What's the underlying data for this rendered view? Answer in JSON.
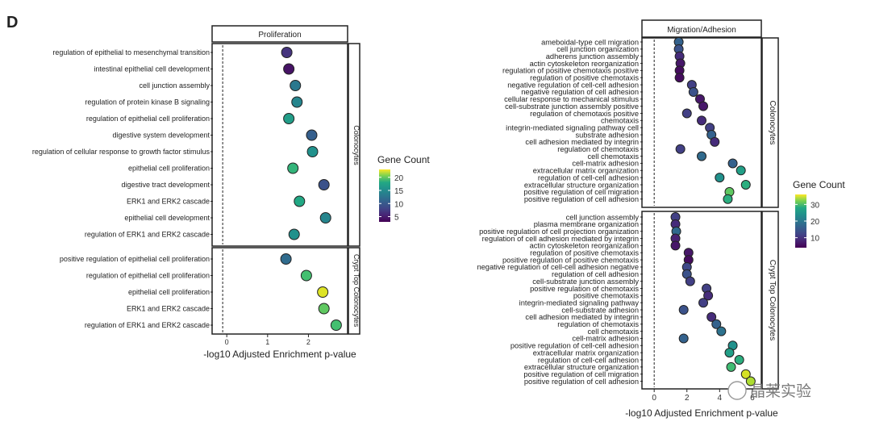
{
  "panel_letter": "D",
  "watermark": "晶莱实验",
  "chart_data": [
    {
      "type": "scatter",
      "subtype": "dotplot",
      "facet_title": "Proliferation",
      "xlabel": "-log10 Adjusted Enrichment p-value",
      "xlim": [
        -0.3,
        2.9
      ],
      "xticks": [
        0,
        1,
        2
      ],
      "reference_line_x": -0.1,
      "color_legend": {
        "title": "Gene Count",
        "min": 3,
        "max": 23,
        "ticks": [
          5,
          10,
          15,
          20
        ],
        "position": "right"
      },
      "groups": [
        {
          "name": "Colonocytes",
          "terms": [
            {
              "term": "regulation of epithelial to mesenchymal transition",
              "x": 1.47,
              "count": 6
            },
            {
              "term": "intestinal epithelial cell development",
              "x": 1.52,
              "count": 4
            },
            {
              "term": "cell junction assembly",
              "x": 1.68,
              "count": 11
            },
            {
              "term": "regulation of protein kinase B signaling",
              "x": 1.72,
              "count": 12
            },
            {
              "term": "regulation of epithelial cell proliferation",
              "x": 1.52,
              "count": 14
            },
            {
              "term": "digestive system development",
              "x": 2.08,
              "count": 9
            },
            {
              "term": "regulation of cellular response to growth factor stimulus",
              "x": 2.1,
              "count": 13
            },
            {
              "term": "epithelial cell proliferation",
              "x": 1.62,
              "count": 16
            },
            {
              "term": "digestive tract development",
              "x": 2.38,
              "count": 8
            },
            {
              "term": "ERK1 and ERK2 cascade",
              "x": 1.78,
              "count": 15
            },
            {
              "term": "epithelial cell development",
              "x": 2.42,
              "count": 12
            },
            {
              "term": "regulation of ERK1 and ERK2 cascade",
              "x": 1.65,
              "count": 13
            }
          ]
        },
        {
          "name": "Crypt Top Colonocytes",
          "terms": [
            {
              "term": "positive regulation of epithelial cell proliferation",
              "x": 1.45,
              "count": 10
            },
            {
              "term": "regulation of epithelial cell proliferation",
              "x": 1.95,
              "count": 17
            },
            {
              "term": "epithelial cell proliferation",
              "x": 2.35,
              "count": 22
            },
            {
              "term": "ERK1 and ERK2 cascade",
              "x": 2.38,
              "count": 18
            },
            {
              "term": "regulation of ERK1 and ERK2 cascade",
              "x": 2.68,
              "count": 17
            }
          ]
        }
      ]
    },
    {
      "type": "scatter",
      "subtype": "dotplot",
      "facet_title": "Migration/Adhesion",
      "xlabel": "-log10 Adjusted Enrichment p-value",
      "xlim": [
        -0.6,
        6.4
      ],
      "xticks": [
        0,
        2,
        4,
        6
      ],
      "reference_line_x": 0,
      "color_legend": {
        "title": "Gene Count",
        "min": 4,
        "max": 36,
        "ticks": [
          10,
          20,
          30
        ],
        "position": "right"
      },
      "groups": [
        {
          "name": "Colonocytes",
          "terms": [
            {
              "term": "ameboidal-type cell migration",
              "x": 1.5,
              "count": 14
            },
            {
              "term": "cell junction organization",
              "x": 1.5,
              "count": 12
            },
            {
              "term": "adherens junction assembly",
              "x": 1.55,
              "count": 8
            },
            {
              "term": "actin cytoskeleton reorganization",
              "x": 1.6,
              "count": 6
            },
            {
              "term": "regulation of positive chemotaxis positive",
              "x": 1.55,
              "count": 5
            },
            {
              "term": "regulation of positive chemotaxis",
              "x": 1.55,
              "count": 5
            },
            {
              "term": "negative regulation of cell-cell adhesion",
              "x": 2.3,
              "count": 10
            },
            {
              "term": "negative regulation of cell adhesion",
              "x": 2.4,
              "count": 12
            },
            {
              "term": "cellular response to mechanical stimulus",
              "x": 2.8,
              "count": 6
            },
            {
              "term": "cell-substrate junction assembly positive",
              "x": 3.0,
              "count": 6
            },
            {
              "term": "regulation of chemotaxis positive",
              "x": 2.0,
              "count": 10
            },
            {
              "term": "chemotaxis",
              "x": 2.9,
              "count": 8
            },
            {
              "term": "integrin-mediated signaling pathway cell",
              "x": 3.4,
              "count": 10
            },
            {
              "term": "substrate adhesion",
              "x": 3.5,
              "count": 14
            },
            {
              "term": "cell adhesion mediated by integrin",
              "x": 3.7,
              "count": 8
            },
            {
              "term": "regulation of chemotaxis",
              "x": 1.6,
              "count": 10
            },
            {
              "term": "cell chemotaxis",
              "x": 2.9,
              "count": 15
            },
            {
              "term": "cell-matrix adhesion",
              "x": 4.8,
              "count": 14
            },
            {
              "term": "extracellular matrix organization",
              "x": 5.3,
              "count": 22
            },
            {
              "term": "regulation of cell-cell adhesion",
              "x": 4.0,
              "count": 20
            },
            {
              "term": "extracellular structure organization",
              "x": 5.6,
              "count": 24
            },
            {
              "term": "positive regulation of cell migration",
              "x": 4.6,
              "count": 28
            },
            {
              "term": "positive regulation of cell adhesion",
              "x": 4.5,
              "count": 24
            }
          ]
        },
        {
          "name": "Crypt Top Colonocytes",
          "terms": [
            {
              "term": "cell junction assembly",
              "x": 1.3,
              "count": 10
            },
            {
              "term": "plasma membrane organization",
              "x": 1.3,
              "count": 8
            },
            {
              "term": "positive regulation of cell projection organization",
              "x": 1.35,
              "count": 15
            },
            {
              "term": "regulation of cell adhesion mediated by integrin",
              "x": 1.3,
              "count": 7
            },
            {
              "term": "actin cytoskeleton reorganization",
              "x": 1.3,
              "count": 6
            },
            {
              "term": "regulation of positive chemotaxis",
              "x": 2.1,
              "count": 6
            },
            {
              "term": "positive regulation of positive chemotaxis",
              "x": 2.1,
              "count": 5
            },
            {
              "term": "negative regulation of cell-cell adhesion negative",
              "x": 2.0,
              "count": 11
            },
            {
              "term": "regulation of cell adhesion",
              "x": 2.0,
              "count": 12
            },
            {
              "term": "cell-substrate junction assembly",
              "x": 2.2,
              "count": 10
            },
            {
              "term": "positive regulation of chemotaxis",
              "x": 3.2,
              "count": 10
            },
            {
              "term": "positive chemotaxis",
              "x": 3.3,
              "count": 8
            },
            {
              "term": "integrin-mediated signaling pathway",
              "x": 3.0,
              "count": 10
            },
            {
              "term": "cell-substrate adhesion",
              "x": 1.8,
              "count": 12
            },
            {
              "term": "cell adhesion mediated by integrin",
              "x": 3.5,
              "count": 8
            },
            {
              "term": "regulation of chemotaxis",
              "x": 3.8,
              "count": 14
            },
            {
              "term": "cell chemotaxis",
              "x": 4.1,
              "count": 16
            },
            {
              "term": "cell-matrix adhesion",
              "x": 1.8,
              "count": 14
            },
            {
              "term": "positive regulation of cell-cell adhesion",
              "x": 4.8,
              "count": 20
            },
            {
              "term": "extracellular matrix organization",
              "x": 4.6,
              "count": 22
            },
            {
              "term": "regulation of cell-cell adhesion",
              "x": 5.2,
              "count": 24
            },
            {
              "term": "extracellular structure organization",
              "x": 4.7,
              "count": 26
            },
            {
              "term": "positive regulation of cell migration",
              "x": 5.6,
              "count": 34
            },
            {
              "term": "positive regulation of cell adhesion",
              "x": 5.9,
              "count": 32
            }
          ]
        }
      ]
    }
  ]
}
